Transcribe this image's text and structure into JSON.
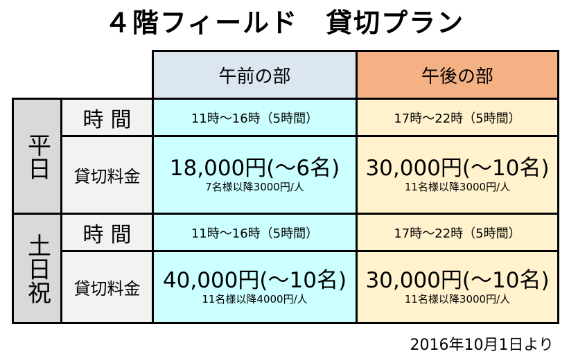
{
  "title": "４階フィールド　貸切プラン",
  "header": {
    "morning": "午前の部",
    "afternoon": "午後の部"
  },
  "weekday": {
    "day_label": "平日",
    "time_label": "時間",
    "fee_label": "貸切料金",
    "morning_time": "11時～16時（5時間）",
    "afternoon_time": "17時～22時（5時間）",
    "morning_price": "18,000円(～6名)",
    "morning_note": "7名様以降3000円/人",
    "afternoon_price": "30,000円(～10名)",
    "afternoon_note": "11名様以降3000円/人"
  },
  "holiday": {
    "day_label": "土日祝",
    "time_label": "時間",
    "fee_label": "貸切料金",
    "morning_time": "11時～16時（5時間）",
    "afternoon_time": "17時～22時（5時間）",
    "morning_price": "40,000円(～10名)",
    "morning_note": "11名様以降4000円/人",
    "afternoon_price": "30,000円(～10名)",
    "afternoon_note": "11名様以降3000円/人"
  },
  "footer": "2016年10月1日より",
  "colors": {
    "header_morning": "#dce6f1",
    "header_afternoon": "#f4b183",
    "morning_cell": "#ccffff",
    "afternoon_cell": "#fff2cc",
    "day_cell": "#d9d9d9",
    "label_cell": "#f2f2f2"
  }
}
